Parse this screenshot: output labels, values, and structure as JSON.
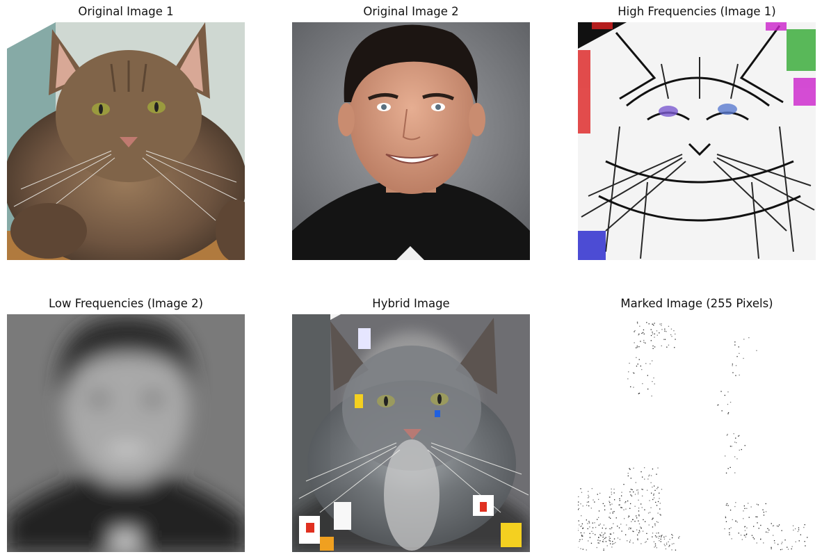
{
  "figure": {
    "panels": [
      {
        "title": "Original Image 1"
      },
      {
        "title": "Original Image 2"
      },
      {
        "title": "High Frequencies (Image 1)"
      },
      {
        "title": "Low Frequencies (Image 2)"
      },
      {
        "title": "Hybrid Image"
      },
      {
        "title": "Marked Image (255 Pixels)"
      }
    ]
  }
}
